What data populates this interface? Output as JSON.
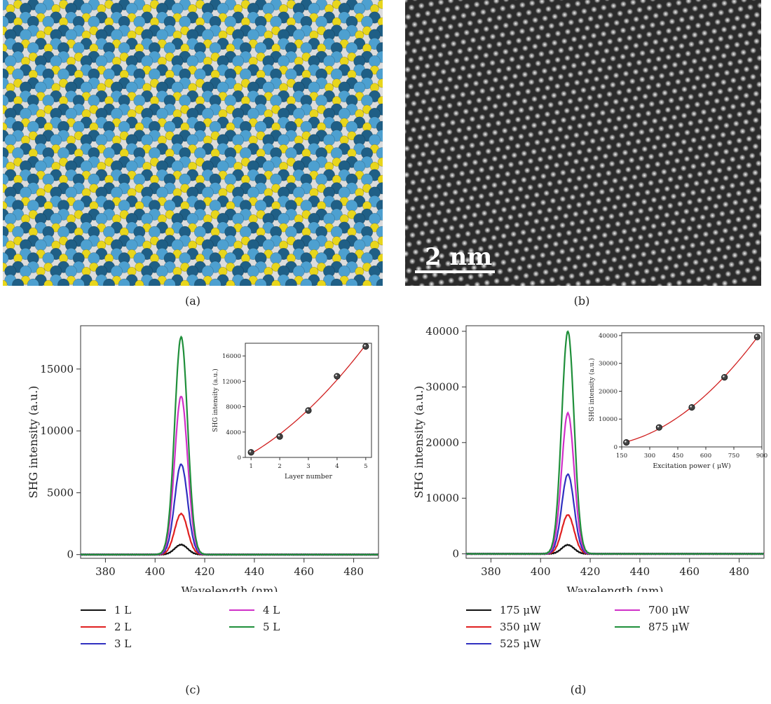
{
  "captions": {
    "a": "(a)",
    "b": "(b)",
    "c": "(c)",
    "d": "(d)"
  },
  "scale_bar_label": "2 nm",
  "atom_colors": {
    "dark": "#1f5f86",
    "light": "#4da0d0",
    "sulfur": "#e8d61c",
    "bond": "#777777"
  },
  "chart_data": [
    {
      "id": "c",
      "type": "line",
      "xlabel": "Wavelength (nm)",
      "ylabel": "SHG intensity (a.u.)",
      "xlim": [
        370,
        490
      ],
      "ylim": [
        -300,
        18500
      ],
      "xticks": [
        380,
        400,
        420,
        440,
        460,
        480
      ],
      "yticks": [
        0,
        5000,
        10000,
        15000
      ],
      "peak_center": 410.5,
      "peak_sigma": 2.6,
      "series": [
        {
          "name": "1 L",
          "color": "#111111",
          "peak": 800
        },
        {
          "name": "2 L",
          "color": "#e02020",
          "peak": 3300
        },
        {
          "name": "3 L",
          "color": "#3030c0",
          "peak": 7300
        },
        {
          "name": "4 L",
          "color": "#d030c8",
          "peak": 12800
        },
        {
          "name": "5 L",
          "color": "#1f8f3a",
          "peak": 17600
        }
      ],
      "inset": {
        "type": "scatter",
        "xlabel": "Layer number",
        "ylabel": "SHG intensity (a.u.)",
        "xlim": [
          0.8,
          5.2
        ],
        "ylim": [
          0,
          18000
        ],
        "xticks": [
          1,
          2,
          3,
          4,
          5
        ],
        "yticks": [
          0,
          4000,
          8000,
          12000,
          16000
        ],
        "x": [
          1,
          2,
          3,
          4,
          5
        ],
        "y": [
          800,
          3300,
          7400,
          12800,
          17500
        ],
        "fit_color": "#d02020"
      }
    },
    {
      "id": "d",
      "type": "line",
      "xlabel": "Wavelength (nm)",
      "ylabel": "SHG intensity (a.u.)",
      "xlim": [
        370,
        490
      ],
      "ylim": [
        -800,
        41000
      ],
      "xticks": [
        380,
        400,
        420,
        440,
        460,
        480
      ],
      "yticks": [
        0,
        10000,
        20000,
        30000,
        40000
      ],
      "peak_center": 411,
      "peak_sigma": 2.5,
      "series": [
        {
          "name": "175 μW",
          "color": "#111111",
          "peak": 1600
        },
        {
          "name": "350 μW",
          "color": "#e02020",
          "peak": 7000
        },
        {
          "name": "525 μW",
          "color": "#3030c0",
          "peak": 14300
        },
        {
          "name": "700 μW",
          "color": "#d030c8",
          "peak": 25300
        },
        {
          "name": "875 μW",
          "color": "#1f8f3a",
          "peak": 40000
        }
      ],
      "inset": {
        "type": "scatter",
        "xlabel": "Excitation power ( μW)",
        "ylabel": "SHG intensity (a.u.)",
        "xlim": [
          150,
          900
        ],
        "ylim": [
          0,
          41000
        ],
        "xticks": [
          150,
          300,
          450,
          600,
          750,
          900
        ],
        "yticks": [
          0,
          10000,
          20000,
          30000,
          40000
        ],
        "x": [
          175,
          350,
          525,
          700,
          875
        ],
        "y": [
          1600,
          7000,
          14200,
          25000,
          39500
        ],
        "fit_color": "#d02020"
      }
    }
  ]
}
